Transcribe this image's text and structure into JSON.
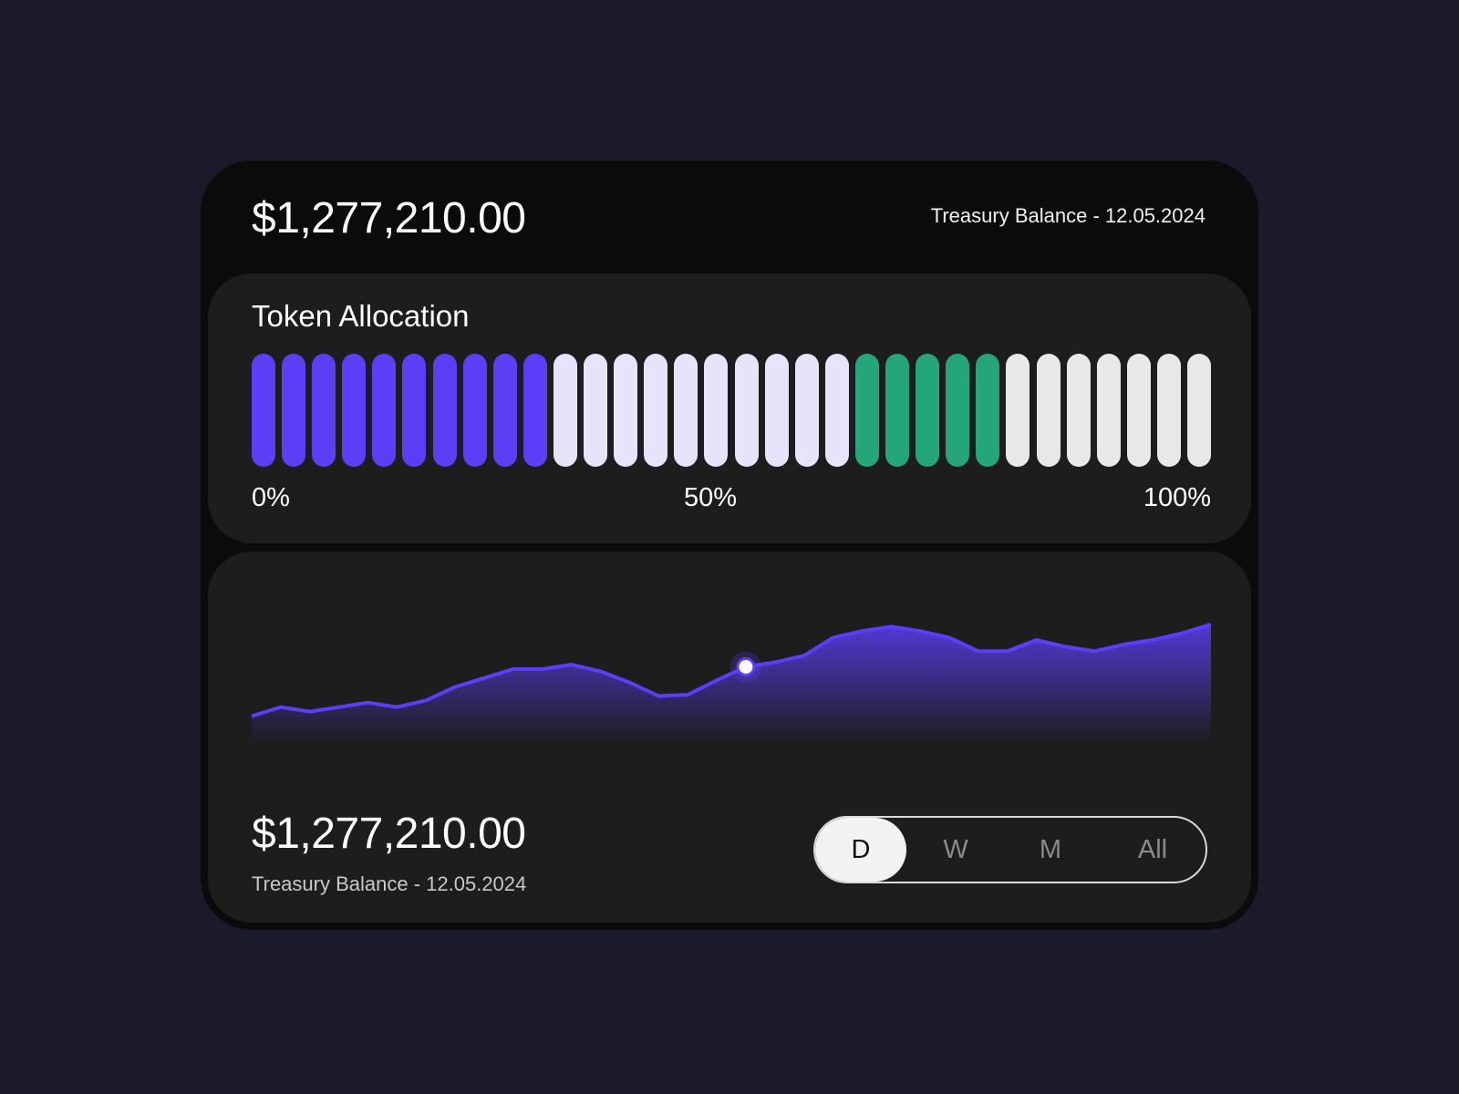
{
  "header": {
    "amount": "$1,277,210.00",
    "label": "Treasury Balance - 12.05.2024"
  },
  "allocation": {
    "title": "Token Allocation",
    "scale_labels": [
      "0%",
      "50%",
      "100%"
    ],
    "segments": [
      {
        "count": 10,
        "color": "#5b3ff7"
      },
      {
        "count": 10,
        "color": "#e6e4fb"
      },
      {
        "count": 5,
        "color": "#24a57a"
      },
      {
        "count": 7,
        "color": "#e8e8e8"
      }
    ]
  },
  "chart_data": {
    "type": "area",
    "color": "#5b3ff7",
    "values": [
      10,
      14,
      12,
      14,
      16,
      14,
      17,
      23,
      27,
      31,
      31,
      33,
      30,
      25,
      19,
      19.5,
      26,
      32,
      34,
      37,
      45,
      48,
      50,
      48,
      45,
      39,
      39,
      44,
      41,
      39,
      42,
      44,
      47,
      51
    ],
    "highlight_index": 17
  },
  "footer": {
    "amount": "$1,277,210.00",
    "label": "Treasury Balance - 12.05.2024"
  },
  "range_toggle": {
    "options": [
      "D",
      "W",
      "M",
      "All"
    ],
    "selected": "D"
  }
}
